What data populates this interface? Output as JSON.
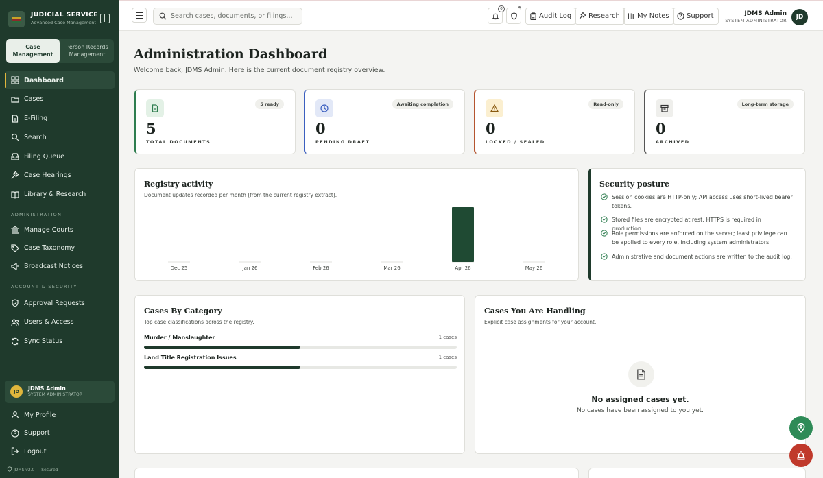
{
  "brand": {
    "title": "JUDICIAL SERVICE",
    "subtitle": "Advanced Case Management"
  },
  "modes": [
    {
      "label": "Case Management",
      "active": true
    },
    {
      "label": "Person Records Management",
      "active": false
    }
  ],
  "nav": {
    "main": [
      "Dashboard",
      "Cases",
      "E-Filing",
      "Search",
      "Filing Queue",
      "Case Hearings",
      "Library & Research"
    ],
    "admin_section": "ADMINISTRATION",
    "admin": [
      "Manage Courts",
      "Case Taxonomy",
      "Broadcast Notices"
    ],
    "account_section": "ACCOUNT & SECURITY",
    "account": [
      "Approval Requests",
      "Users & Access",
      "Sync Status"
    ],
    "footer": [
      "My Profile",
      "Support",
      "Logout"
    ]
  },
  "sidebar_user": {
    "initials": "JD",
    "name": "JDMS Admin",
    "role": "SYSTEM ADMINISTRATOR"
  },
  "version": "JDMS v2.0 — Secured",
  "topbar": {
    "search_placeholder": "Search cases, documents, or filings...",
    "notification_count": "0",
    "buttons": [
      "Audit Log",
      "Research",
      "My Notes",
      "Support"
    ],
    "user_name": "JDMS Admin",
    "user_role": "SYSTEM ADMINISTRATOR",
    "user_initials": "JD"
  },
  "page": {
    "title": "Administration Dashboard",
    "subtitle": "Welcome back, JDMS Admin. Here is the current document registry overview."
  },
  "stats": [
    {
      "value": "5",
      "label": "TOTAL DOCUMENTS",
      "tag": "5 ready",
      "icon": "document-icon",
      "accent": "#2e7d4f"
    },
    {
      "value": "0",
      "label": "PENDING DRAFT",
      "tag": "Awaiting completion",
      "icon": "clock-icon",
      "accent": "#3b5fc0"
    },
    {
      "value": "0",
      "label": "LOCKED / SEALED",
      "tag": "Read-only",
      "icon": "warning-icon",
      "accent": "#b5542f"
    },
    {
      "value": "0",
      "label": "ARCHIVED",
      "tag": "Long-term storage",
      "icon": "archive-icon",
      "accent": "#555555"
    }
  ],
  "registry": {
    "title": "Registry activity",
    "subtitle": "Document updates recorded per month (from the current registry extract).",
    "chart_data": {
      "type": "bar",
      "categories": [
        "Dec 25",
        "Jan 26",
        "Feb 26",
        "Mar 26",
        "Apr 26",
        "May 26"
      ],
      "values": [
        0,
        0,
        0,
        0,
        5,
        0
      ],
      "ylim": [
        0,
        5
      ]
    }
  },
  "security": {
    "title": "Security posture",
    "items": [
      "Session cookies are HTTP-only; API access uses short-lived bearer tokens.",
      "Stored files are encrypted at rest; HTTPS is required in production.",
      "Role permissions are enforced on the server; least privilege can be applied to every role, including system administrators.",
      "Administrative and document actions are written to the audit log."
    ]
  },
  "categories": {
    "title": "Cases By Category",
    "subtitle": "Top case classifications across the registry.",
    "rows": [
      {
        "name": "Murder / Manslaughter",
        "count": "1 cases",
        "fraction": 0.5
      },
      {
        "name": "Land Title Registration Issues",
        "count": "1 cases",
        "fraction": 0.5
      }
    ]
  },
  "handling": {
    "title": "Cases You Are Handling",
    "subtitle": "Explicit case assignments for your account.",
    "empty_title": "No assigned cases yet.",
    "empty_sub": "No cases have been assigned to you yet."
  },
  "colors": {
    "sidebar": "#1f3a2c",
    "accent_gold": "#e0b63c",
    "fab_green": "#2e8b57",
    "fab_red": "#c0392b"
  }
}
